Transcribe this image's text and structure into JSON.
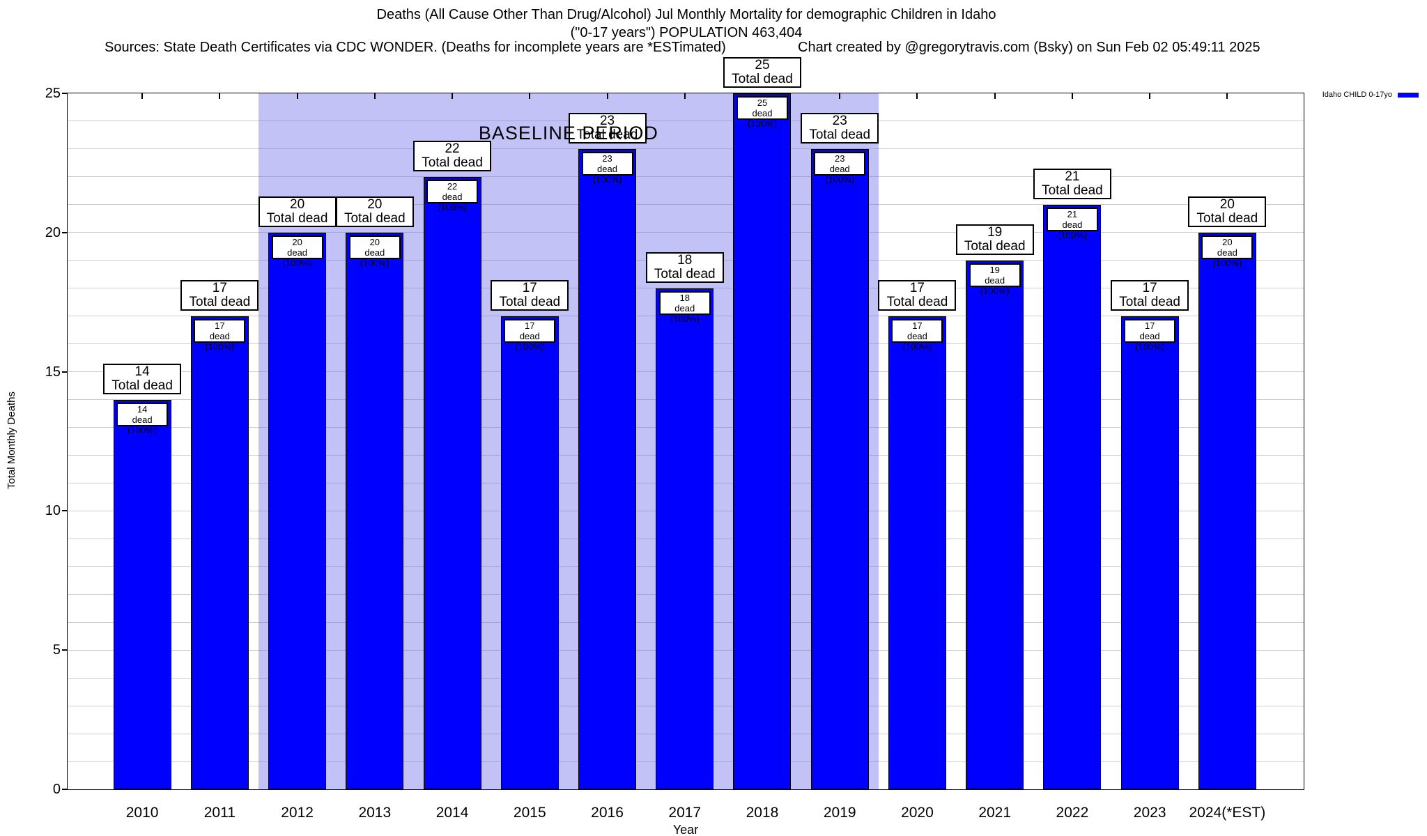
{
  "header": {
    "sources": "Sources: State Death Certificates via CDC WONDER. (Deaths for incomplete years are *ESTimated)",
    "credit": "Chart created by @gregorytravis.com (Bsky) on Sun Feb 02 05:49:11 2025"
  },
  "legend": {
    "label": "Idaho CHILD 0-17yo",
    "swatch_color": "#0000ff"
  },
  "chart_data": {
    "type": "bar",
    "title": "Deaths (All Cause Other Than Drug/Alcohol) Jul Monthly Mortality for demographic Children in Idaho",
    "subtitle": "(\"0-17 years\") POPULATION 463,404",
    "categories": [
      "2010",
      "2011",
      "2012",
      "2013",
      "2014",
      "2015",
      "2016",
      "2017",
      "2018",
      "2019",
      "2020",
      "2021",
      "2022",
      "2023",
      "2024(*EST)"
    ],
    "values": [
      14,
      17,
      20,
      20,
      22,
      17,
      23,
      18,
      25,
      23,
      17,
      19,
      21,
      17,
      20
    ],
    "series_name": "Idaho CHILD 0-17yo",
    "xlabel": "Year",
    "ylabel": "Total Monthly Deaths",
    "ylim": [
      0,
      25
    ],
    "yticks": [
      0,
      5,
      10,
      15,
      20,
      25
    ],
    "grid": "horizontal, every 1 unit",
    "legend_position": "top-right",
    "bar_color": "#0000ff",
    "top_box_label": "Total dead",
    "bar_box_label": "dead (100%)",
    "baseline": {
      "label": "BASELINE PERIOD",
      "from_category": "2012",
      "to_category": "2019",
      "fill": "#c2c2f7"
    }
  }
}
